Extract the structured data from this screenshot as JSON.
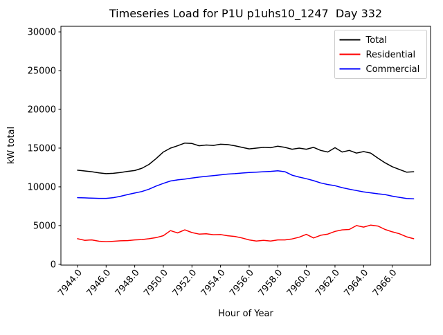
{
  "figure": {
    "title": "Timeseries Load for P1U p1uhs10_1247  Day 332",
    "xlabel": "Hour of Year",
    "ylabel": "kW total"
  },
  "chart_data": {
    "type": "line",
    "title": "Timeseries Load for P1U p1uhs10_1247  Day 332",
    "xlabel": "Hour of Year",
    "ylabel": "kW total",
    "grid": false,
    "legend_position": "upper right",
    "xlim": [
      7942.84,
      7968.68
    ],
    "ylim": [
      -100,
      30720
    ],
    "xtick_values": [
      7944,
      7946,
      7948,
      7950,
      7952,
      7954,
      7956,
      7958,
      7960,
      7962,
      7964,
      7966
    ],
    "xtick_labels": [
      "7944.0",
      "7946.0",
      "7948.0",
      "7950.0",
      "7952.0",
      "7954.0",
      "7956.0",
      "7958.0",
      "7960.0",
      "7962.0",
      "7964.0",
      "7966.0"
    ],
    "ytick_values": [
      0,
      5000,
      10000,
      15000,
      20000,
      25000,
      30000
    ],
    "ytick_labels": [
      "0",
      "5000",
      "10000",
      "15000",
      "20000",
      "25000",
      "30000"
    ],
    "x": [
      7944.0,
      7944.5,
      7945.0,
      7945.5,
      7946.0,
      7946.5,
      7947.0,
      7947.5,
      7948.0,
      7948.5,
      7949.0,
      7949.5,
      7950.0,
      7950.5,
      7951.0,
      7951.5,
      7952.0,
      7952.5,
      7953.0,
      7953.5,
      7954.0,
      7954.5,
      7955.0,
      7955.5,
      7956.0,
      7956.5,
      7957.0,
      7957.5,
      7958.0,
      7958.5,
      7959.0,
      7959.5,
      7960.0,
      7960.5,
      7961.0,
      7961.5,
      7962.0,
      7962.5,
      7963.0,
      7963.5,
      7964.0,
      7964.5,
      7965.0,
      7965.5,
      7966.0,
      7966.5,
      7967.0,
      7967.5
    ],
    "series": [
      {
        "name": "Total",
        "color": "#000000",
        "values": [
          12150,
          12050,
          11950,
          11800,
          11700,
          11750,
          11850,
          12000,
          12100,
          12400,
          12900,
          13650,
          14500,
          15000,
          15300,
          15650,
          15600,
          15300,
          15400,
          15350,
          15500,
          15450,
          15300,
          15100,
          14900,
          15000,
          15100,
          15050,
          15250,
          15100,
          14850,
          15000,
          14850,
          15100,
          14700,
          14500,
          15050,
          14500,
          14700,
          14350,
          14550,
          14350,
          13700,
          13100,
          12600,
          12250,
          11900,
          11950
        ]
      },
      {
        "name": "Residential",
        "color": "#ff0000",
        "values": [
          3300,
          3100,
          3150,
          2980,
          2920,
          2970,
          3040,
          3060,
          3150,
          3200,
          3300,
          3450,
          3700,
          4350,
          4050,
          4450,
          4100,
          3900,
          3950,
          3820,
          3840,
          3690,
          3600,
          3400,
          3150,
          3010,
          3100,
          3010,
          3150,
          3150,
          3280,
          3500,
          3870,
          3400,
          3750,
          3900,
          4250,
          4450,
          4500,
          5000,
          4800,
          5060,
          4940,
          4500,
          4200,
          3950,
          3550,
          3300
        ]
      },
      {
        "name": "Commercial",
        "color": "#0000ff",
        "values": [
          8600,
          8570,
          8540,
          8510,
          8510,
          8600,
          8780,
          9000,
          9200,
          9400,
          9700,
          10100,
          10450,
          10750,
          10900,
          11000,
          11130,
          11250,
          11350,
          11450,
          11550,
          11650,
          11700,
          11780,
          11850,
          11900,
          11950,
          12000,
          12080,
          11950,
          11500,
          11250,
          11050,
          10800,
          10500,
          10300,
          10150,
          9900,
          9700,
          9520,
          9350,
          9230,
          9100,
          9000,
          8800,
          8650,
          8500,
          8450
        ]
      }
    ]
  }
}
